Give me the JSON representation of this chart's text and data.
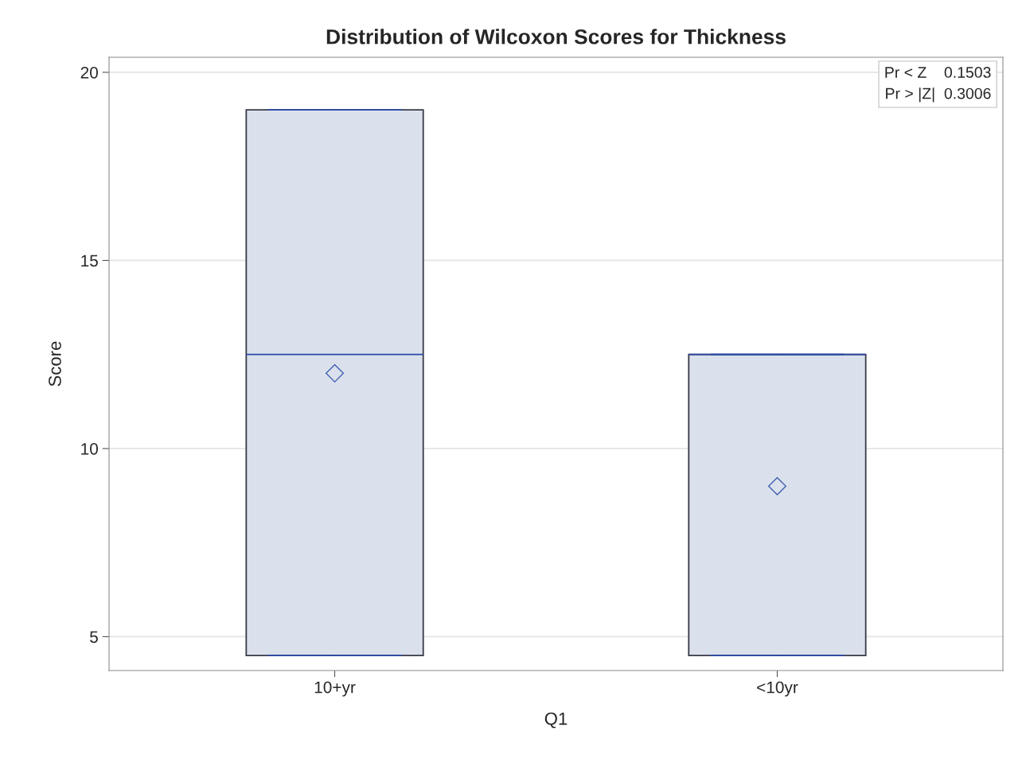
{
  "chart_data": {
    "type": "box",
    "title": "Distribution of Wilcoxon Scores for Thickness",
    "xlabel": "Q1",
    "ylabel": "Score",
    "categories": [
      "10+yr",
      "<10yr"
    ],
    "series": [
      {
        "color": "#dbe1ec",
        "boxes": [
          {
            "low": 4.5,
            "q1": 4.5,
            "median": 12.5,
            "q3": 19,
            "high": 19,
            "mean": 12
          },
          {
            "low": 4.5,
            "q1": 4.5,
            "median": 12.5,
            "q3": 12.5,
            "high": 12.5,
            "mean": 9
          }
        ]
      }
    ],
    "ylim": [
      4.1,
      20.4
    ],
    "yticks": [
      5,
      10,
      15,
      20
    ],
    "grid": "y",
    "marker": "diamond",
    "annotations": [
      "Pr < Z    0.1503",
      "Pr > |Z|  0.3006"
    ]
  }
}
